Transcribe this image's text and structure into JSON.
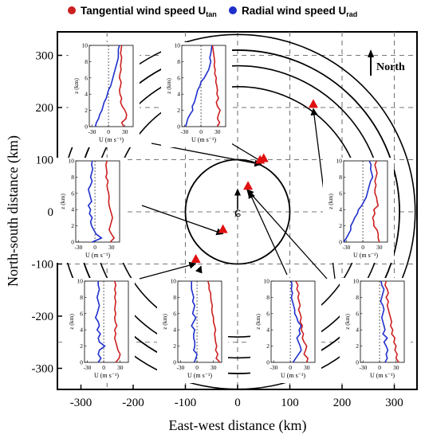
{
  "chart_data": {
    "type": "line",
    "legend": {
      "placement": "top",
      "entries": [
        {
          "name": "Tangential wind speed U",
          "sub": "tan",
          "color": "#cc1f1f"
        },
        {
          "name": "Radial wind speed U",
          "sub": "rad",
          "color": "#1f2fcc"
        }
      ]
    },
    "main": {
      "xlabel": "East-west distance (km)",
      "ylabel": "North-south distance (km)",
      "xlim": [
        -350,
        350
      ],
      "ylim": [
        -320,
        350
      ],
      "xticks": [
        -300,
        -200,
        -100,
        0,
        100,
        200,
        300
      ],
      "yticks": [
        -300,
        -200,
        -100,
        0,
        100,
        200,
        300
      ],
      "grid_lines": [
        -250,
        -100,
        0,
        100,
        200,
        300
      ],
      "north_label": "North",
      "center_symbol": "ɕ",
      "circles_radius_km": [
        100,
        310
      ],
      "arcs_radius_km": [
        240,
        280,
        340
      ],
      "markers": [
        {
          "x": 43,
          "y": 100
        },
        {
          "x": 50,
          "y": 103
        },
        {
          "x": 20,
          "y": 50
        },
        {
          "x": 145,
          "y": 207
        },
        {
          "x": -28,
          "y": -33
        },
        {
          "x": -80,
          "y": -90
        }
      ],
      "motion_arrow": {
        "x": 0,
        "y": 5,
        "dx": 0,
        "dy": 40
      }
    },
    "insets": {
      "ylabel": "z (km)",
      "xlabel": "U (m s⁻¹)",
      "xlim": [
        -35,
        45
      ],
      "ylim": [
        0,
        10
      ],
      "xticks": [
        -30,
        0,
        30
      ],
      "yticks": [
        0,
        2,
        4,
        6,
        8,
        10
      ],
      "z": [
        0,
        0.5,
        1,
        1.5,
        2,
        2.5,
        3,
        3.5,
        4,
        4.5,
        5,
        5.5,
        6,
        6.5,
        7,
        7.5,
        8,
        8.5,
        9,
        9.5,
        10
      ],
      "panels": [
        {
          "id": "upper-left-1",
          "target": {
            "x": 45,
            "y": 100
          },
          "u_tan": [
            28,
            24,
            32,
            33,
            30,
            25,
            22,
            24,
            21,
            20,
            22,
            23,
            20,
            21,
            23,
            22,
            23,
            24,
            22,
            23,
            24
          ],
          "u_rad": [
            -24,
            -22,
            -18,
            -16,
            -12,
            -10,
            -8,
            -4,
            -2,
            0,
            4,
            6,
            8,
            10,
            12,
            14,
            16,
            18,
            18,
            18,
            20
          ]
        },
        {
          "id": "upper-left-2",
          "target": {
            "x": 50,
            "y": 103
          },
          "u_tan": [
            30,
            34,
            30,
            32,
            35,
            30,
            28,
            32,
            29,
            30,
            29,
            27,
            28,
            25,
            26,
            24,
            25,
            24,
            23,
            22,
            21
          ],
          "u_rad": [
            -28,
            -26,
            -24,
            -20,
            -15,
            -16,
            -12,
            -10,
            -8,
            -6,
            -2,
            0,
            6,
            10,
            14,
            16,
            18,
            16,
            18,
            19,
            20
          ]
        },
        {
          "id": "middle-left",
          "target": {
            "x": -28,
            "y": -33
          },
          "u_tan": [
            28,
            35,
            30,
            26,
            28,
            30,
            32,
            30,
            28,
            26,
            25,
            26,
            25,
            23,
            22,
            24,
            20,
            22,
            21,
            20,
            22
          ],
          "u_rad": [
            -5,
            12,
            2,
            -2,
            -6,
            -8,
            -5,
            -10,
            -8,
            -12,
            -6,
            -8,
            -10,
            -12,
            -8,
            -5,
            -8,
            -6,
            -4,
            -6,
            -5
          ]
        },
        {
          "id": "middle-right",
          "target": {
            "x": 145,
            "y": 207
          },
          "u_tan": [
            30,
            28,
            28,
            26,
            20,
            20,
            18,
            22,
            20,
            28,
            26,
            25,
            22,
            22,
            24,
            22,
            24,
            26,
            24,
            22,
            25
          ],
          "u_rad": [
            -35,
            -30,
            -26,
            -22,
            -22,
            -18,
            -15,
            -10,
            -8,
            -2,
            2,
            6,
            8,
            10,
            12,
            14,
            18,
            16,
            14,
            15,
            12
          ]
        },
        {
          "id": "bottom-1",
          "target": {
            "x": -80,
            "y": -90
          },
          "u_tan": [
            22,
            28,
            30,
            26,
            24,
            22,
            20,
            22,
            20,
            24,
            21,
            20,
            22,
            20,
            21,
            22,
            20,
            22,
            20,
            22,
            20
          ],
          "u_rad": [
            -10,
            -5,
            -10,
            -8,
            2,
            -8,
            -10,
            -6,
            -12,
            -8,
            -10,
            -15,
            -12,
            -10,
            -8,
            -10,
            -12,
            -10,
            -8,
            -10,
            -10
          ]
        },
        {
          "id": "bottom-2",
          "target": {
            "x": -70,
            "y": -95
          },
          "u_tan": [
            42,
            35,
            38,
            34,
            36,
            34,
            33,
            32,
            34,
            32,
            30,
            30,
            28,
            27,
            28,
            26,
            25,
            25,
            22,
            22,
            20
          ],
          "u_rad": [
            -5,
            -2,
            0,
            -6,
            -4,
            -4,
            -6,
            -6,
            -4,
            -10,
            -6,
            -2,
            -8,
            -6,
            -4,
            -8,
            -6,
            -8,
            -10,
            -10,
            -10
          ]
        },
        {
          "id": "bottom-3",
          "target": {
            "x": 22,
            "y": 48
          },
          "u_tan": [
            30,
            32,
            25,
            28,
            30,
            25,
            22,
            24,
            20,
            22,
            18,
            20,
            18,
            15,
            18,
            16,
            14,
            16,
            12,
            14,
            10
          ],
          "u_rad": [
            5,
            10,
            15,
            20,
            18,
            15,
            12,
            18,
            16,
            20,
            14,
            12,
            8,
            8,
            6,
            4,
            2,
            4,
            2,
            3,
            2
          ]
        },
        {
          "id": "bottom-4",
          "target": {
            "x": 18,
            "y": 52
          },
          "u_tan": [
            35,
            30,
            32,
            28,
            30,
            26,
            28,
            22,
            24,
            20,
            22,
            20,
            18,
            16,
            14,
            16,
            12,
            16,
            14,
            10,
            12
          ],
          "u_rad": [
            10,
            14,
            12,
            15,
            12,
            8,
            14,
            6,
            10,
            8,
            6,
            4,
            6,
            8,
            6,
            2,
            4,
            6,
            8,
            4,
            3
          ]
        }
      ]
    }
  }
}
